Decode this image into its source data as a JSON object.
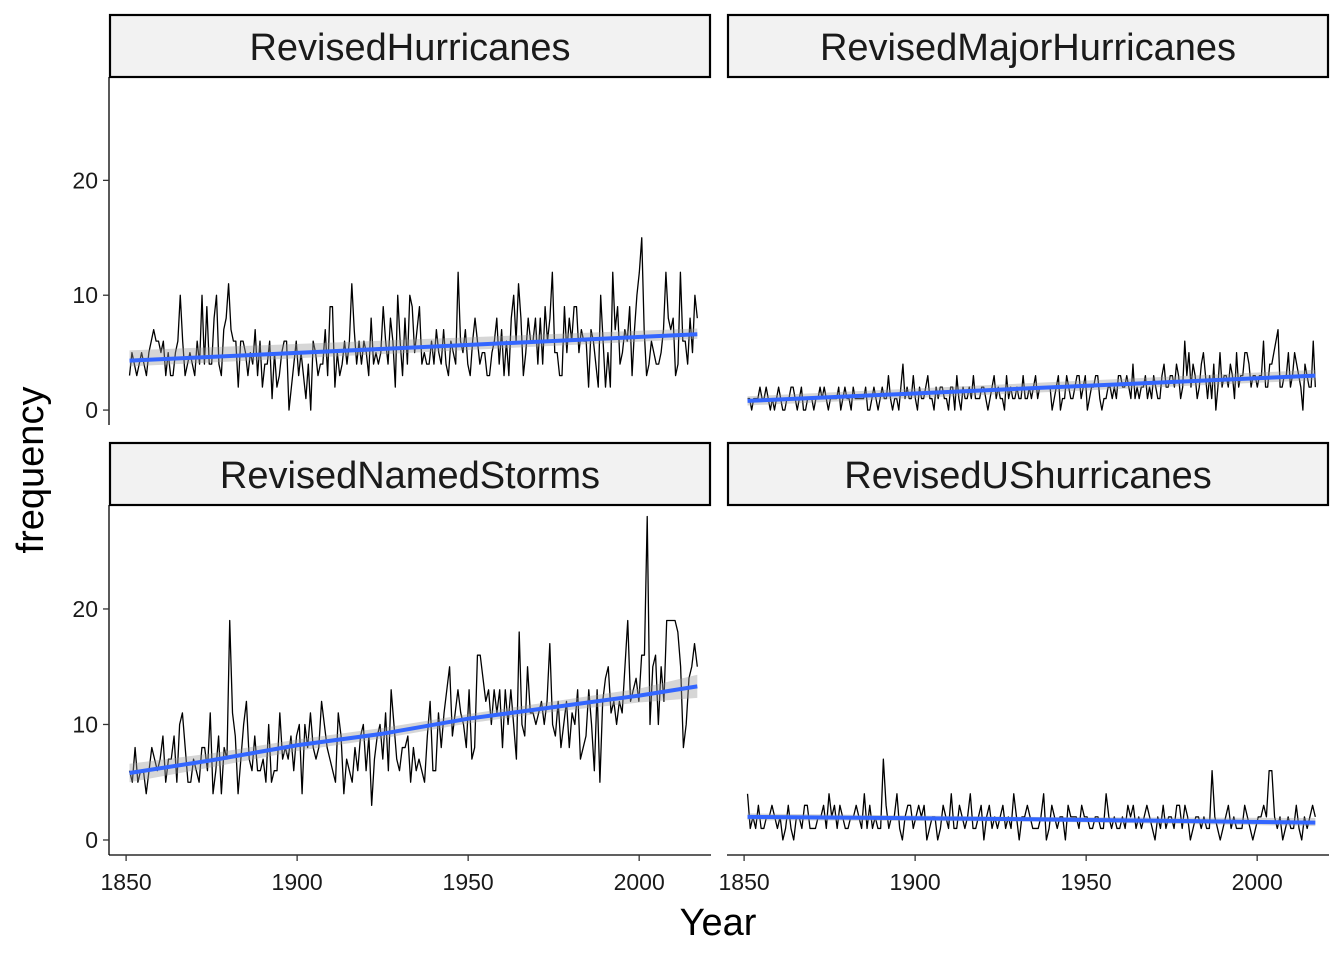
{
  "chart_data": {
    "type": "line",
    "layout": "facet_wrap 2x2, shared y axis",
    "xlabel": "Year",
    "ylabel": "frequency",
    "xlim": [
      1845,
      2021
    ],
    "ylim": [
      -1.3,
      29.0
    ],
    "x_ticks": [
      1850,
      1900,
      1950,
      2000
    ],
    "y_ticks": [
      0,
      10,
      20
    ],
    "colors": {
      "series": "#000000",
      "trend": "#3366ff",
      "band": "#999999",
      "strip": "#f2f2f2"
    },
    "grid": false,
    "legend": "none",
    "panels": [
      {
        "title": "RevisedHurricanes",
        "x_start": 1851,
        "values": [
          3,
          5,
          4,
          3,
          4,
          5,
          4,
          3,
          5,
          6,
          7,
          6,
          6,
          5,
          6,
          3,
          5,
          3,
          3,
          5,
          6,
          10,
          6,
          3,
          4,
          5,
          4,
          3,
          6,
          4,
          10,
          4,
          9,
          4,
          4,
          8,
          10,
          4,
          3,
          7,
          8,
          11,
          7,
          6,
          6,
          2,
          6,
          6,
          5,
          3,
          5,
          4,
          7,
          3,
          6,
          2,
          4,
          4,
          6,
          1,
          5,
          2,
          3,
          5,
          6,
          6,
          0,
          2,
          4,
          6,
          3,
          5,
          3,
          1,
          4,
          0,
          6,
          5,
          3,
          4,
          4,
          7,
          3,
          9,
          9,
          2,
          5,
          3,
          4,
          6,
          4,
          6,
          11,
          7,
          4,
          6,
          4,
          6,
          5,
          3,
          8,
          4,
          5,
          4,
          5,
          9,
          6,
          4,
          8,
          6,
          2,
          10,
          6,
          3,
          8,
          4,
          10,
          9,
          5,
          7,
          9,
          4,
          5,
          4,
          4,
          6,
          4,
          7,
          5,
          4,
          7,
          4,
          3,
          6,
          5,
          4,
          12,
          6,
          5,
          7,
          4,
          3,
          6,
          8,
          6,
          4,
          5,
          5,
          3,
          3,
          5,
          6,
          8,
          4,
          7,
          3,
          6,
          3,
          8,
          10,
          6,
          11,
          8,
          3,
          5,
          8,
          6,
          6,
          8,
          4,
          8,
          4,
          9,
          6,
          8,
          12,
          5,
          5,
          3,
          3,
          9,
          5,
          8,
          6,
          9,
          9,
          5,
          7,
          6,
          6,
          2,
          7,
          6,
          4,
          2,
          10,
          6,
          2,
          5,
          2,
          12,
          7,
          9,
          4,
          5,
          7,
          6,
          9,
          3,
          7,
          10,
          12,
          15,
          7,
          3,
          4,
          6,
          5,
          4,
          4,
          5,
          7,
          12,
          8,
          7,
          8,
          3,
          4,
          12,
          6,
          6,
          4,
          8,
          5,
          10,
          8
        ]
      },
      {
        "title": "RevisedMajorHurricanes",
        "x_start": 1851,
        "values": [
          1,
          1,
          0,
          1,
          1,
          1,
          2,
          1,
          1,
          2,
          1,
          0,
          1,
          0,
          1,
          2,
          1,
          0,
          0,
          1,
          1,
          2,
          2,
          1,
          0,
          1,
          2,
          0,
          0,
          1,
          1,
          1,
          0,
          1,
          1,
          2,
          1,
          2,
          1,
          0,
          1,
          1,
          1,
          1,
          2,
          0,
          1,
          2,
          1,
          1,
          0,
          2,
          1,
          1,
          1,
          1,
          1,
          2,
          0,
          0,
          1,
          2,
          1,
          0,
          1,
          2,
          1,
          1,
          3,
          1,
          0,
          1,
          1,
          0,
          2,
          4,
          1,
          2,
          1,
          1,
          3,
          1,
          0,
          2,
          1,
          1,
          2,
          3,
          1,
          1,
          0,
          2,
          1,
          2,
          2,
          1,
          1,
          0,
          2,
          2,
          0,
          3,
          1,
          0,
          2,
          1,
          1,
          2,
          1,
          3,
          1,
          1,
          1,
          2,
          2,
          1,
          0,
          1,
          2,
          3,
          1,
          2,
          1,
          1,
          0,
          3,
          1,
          2,
          1,
          1,
          2,
          1,
          1,
          3,
          1,
          1,
          2,
          1,
          2,
          3,
          1,
          2,
          2,
          2,
          2,
          2,
          2,
          0,
          1,
          2,
          3,
          0,
          1,
          1,
          3,
          2,
          1,
          1,
          2,
          3,
          3,
          1,
          2,
          3,
          0,
          1,
          2,
          2,
          3,
          3,
          1,
          0,
          1,
          1,
          2,
          2,
          1,
          2,
          1,
          3,
          3,
          2,
          2,
          3,
          2,
          1,
          4,
          1,
          2,
          1,
          2,
          2,
          3,
          1,
          2,
          1,
          3,
          2,
          1,
          1,
          3,
          4,
          2,
          2,
          3,
          3,
          2,
          4,
          3,
          1,
          2,
          6,
          3,
          5,
          2,
          4,
          3,
          1,
          2,
          4,
          5,
          3,
          1,
          3,
          1,
          4,
          0,
          2,
          5,
          2,
          3,
          3,
          2,
          4,
          3,
          1,
          5,
          2,
          3,
          3,
          5,
          5,
          4,
          2,
          3,
          3,
          2,
          3,
          3,
          6,
          2,
          2,
          4,
          4,
          5,
          6,
          7,
          2,
          2,
          3,
          3,
          5,
          2,
          3,
          5,
          4,
          3,
          2,
          0,
          4,
          3,
          2,
          2,
          6,
          2
        ]
      },
      {
        "title": "RevisedNamedStorms",
        "x_start": 1851,
        "values": [
          6,
          5,
          8,
          5,
          6,
          6,
          4,
          6,
          8,
          7,
          6,
          7,
          9,
          5,
          7,
          7,
          9,
          5,
          10,
          11,
          8,
          5,
          5,
          7,
          6,
          5,
          8,
          8,
          6,
          11,
          4,
          6,
          9,
          4,
          8,
          7,
          19,
          11,
          9,
          4,
          7,
          10,
          12,
          7,
          6,
          9,
          6,
          6,
          7,
          5,
          10,
          5,
          6,
          6,
          11,
          7,
          8,
          7,
          9,
          6,
          9,
          10,
          4,
          10,
          8,
          11,
          8,
          7,
          8,
          12,
          10,
          8,
          7,
          6,
          5,
          11,
          9,
          4,
          7,
          6,
          5,
          8,
          6,
          9,
          10,
          6,
          9,
          3,
          7,
          9,
          10,
          7,
          11,
          6,
          13,
          10,
          7,
          6,
          8,
          8,
          9,
          5,
          8,
          6,
          7,
          6,
          5,
          9,
          12,
          6,
          6,
          11,
          8,
          11,
          13,
          15,
          9,
          11,
          13,
          11,
          10,
          8,
          13,
          7,
          8,
          16,
          16,
          14,
          12,
          13,
          10,
          13,
          11,
          13,
          8,
          13,
          10,
          13,
          10,
          7,
          18,
          10,
          9,
          15,
          11,
          11,
          10,
          11,
          12,
          10,
          12,
          17,
          10,
          9,
          12,
          8,
          10,
          12,
          8,
          11,
          10,
          13,
          7,
          8,
          9,
          13,
          10,
          6,
          13,
          5,
          12,
          14,
          15,
          11,
          12,
          10,
          12,
          11,
          15,
          19,
          12,
          13,
          14,
          12,
          16,
          16,
          28,
          10,
          15,
          16,
          10,
          15,
          12,
          19,
          19,
          19,
          19,
          18,
          15,
          8,
          10,
          14,
          15,
          17,
          15
        ]
      },
      {
        "title": "RevisedUShurricanes",
        "x_start": 1851,
        "values": [
          4,
          1,
          2,
          1,
          3,
          1,
          1,
          2,
          2,
          3,
          2,
          1,
          2,
          0,
          1,
          3,
          1,
          0,
          2,
          2,
          1,
          3,
          3,
          1,
          1,
          1,
          2,
          2,
          3,
          1,
          4,
          2,
          3,
          1,
          3,
          2,
          1,
          1,
          2,
          2,
          3,
          2,
          1,
          4,
          1,
          3,
          1,
          2,
          1,
          1,
          7,
          3,
          1,
          2,
          2,
          4,
          1,
          0,
          2,
          3,
          3,
          1,
          2,
          3,
          2,
          3,
          0,
          1,
          2,
          2,
          0,
          1,
          3,
          2,
          1,
          4,
          1,
          1,
          3,
          2,
          1,
          2,
          4,
          1,
          1,
          2,
          3,
          0,
          2,
          3,
          1,
          2,
          1,
          2,
          3,
          1,
          2,
          1,
          4,
          2,
          0,
          2,
          2,
          3,
          2,
          1,
          1,
          1,
          2,
          4,
          0,
          1,
          3,
          2,
          1,
          2,
          2,
          0,
          3,
          2,
          2,
          2,
          1,
          3,
          2,
          2,
          1,
          1,
          2,
          2,
          1,
          1,
          4,
          2,
          1,
          2,
          1,
          1,
          2,
          1,
          3,
          2,
          3,
          1,
          2,
          1,
          2,
          3,
          2,
          1,
          0,
          2,
          1,
          3,
          1,
          2,
          2,
          1,
          3,
          3,
          1,
          3,
          2,
          0,
          1,
          2,
          2,
          1,
          2,
          1,
          1,
          6,
          2,
          1,
          0,
          1,
          2,
          3,
          1,
          2,
          1,
          1,
          1,
          3,
          2,
          1,
          0,
          1,
          2,
          2,
          3,
          2,
          6,
          6,
          2,
          1,
          2,
          0,
          1,
          2,
          1,
          1,
          3,
          1,
          0,
          2,
          1,
          2,
          3,
          2
        ]
      }
    ],
    "trend": [
      {
        "x": [
          1851,
          2017
        ],
        "y": [
          4.3,
          6.6
        ],
        "band": [
          [
            3.8,
            5.2
          ],
          [
            6.2,
            7.1
          ]
        ]
      },
      {
        "x": [
          1851,
          2017
        ],
        "y": [
          0.8,
          3.0
        ],
        "band": [
          [
            0.4,
            1.2
          ],
          [
            2.6,
            3.5
          ]
        ]
      },
      {
        "x": [
          1851,
          1875,
          1900,
          1925,
          1950,
          1975,
          2000,
          2017
        ],
        "y": [
          5.8,
          6.9,
          8.2,
          9.2,
          10.5,
          11.5,
          12.5,
          13.3
        ],
        "band": [
          [
            5.0,
            6.6
          ],
          [
            6.3,
            7.5
          ],
          [
            7.7,
            8.7
          ],
          [
            8.8,
            9.7
          ],
          [
            10.1,
            10.9
          ],
          [
            11.1,
            12.0
          ],
          [
            11.9,
            13.1
          ],
          [
            12.3,
            14.3
          ]
        ]
      },
      {
        "x": [
          1851,
          1934,
          2017
        ],
        "y": [
          2.0,
          1.8,
          1.5
        ],
        "band": [
          [
            1.7,
            2.3
          ],
          [
            1.6,
            2.0
          ],
          [
            1.2,
            1.9
          ]
        ]
      }
    ]
  }
}
